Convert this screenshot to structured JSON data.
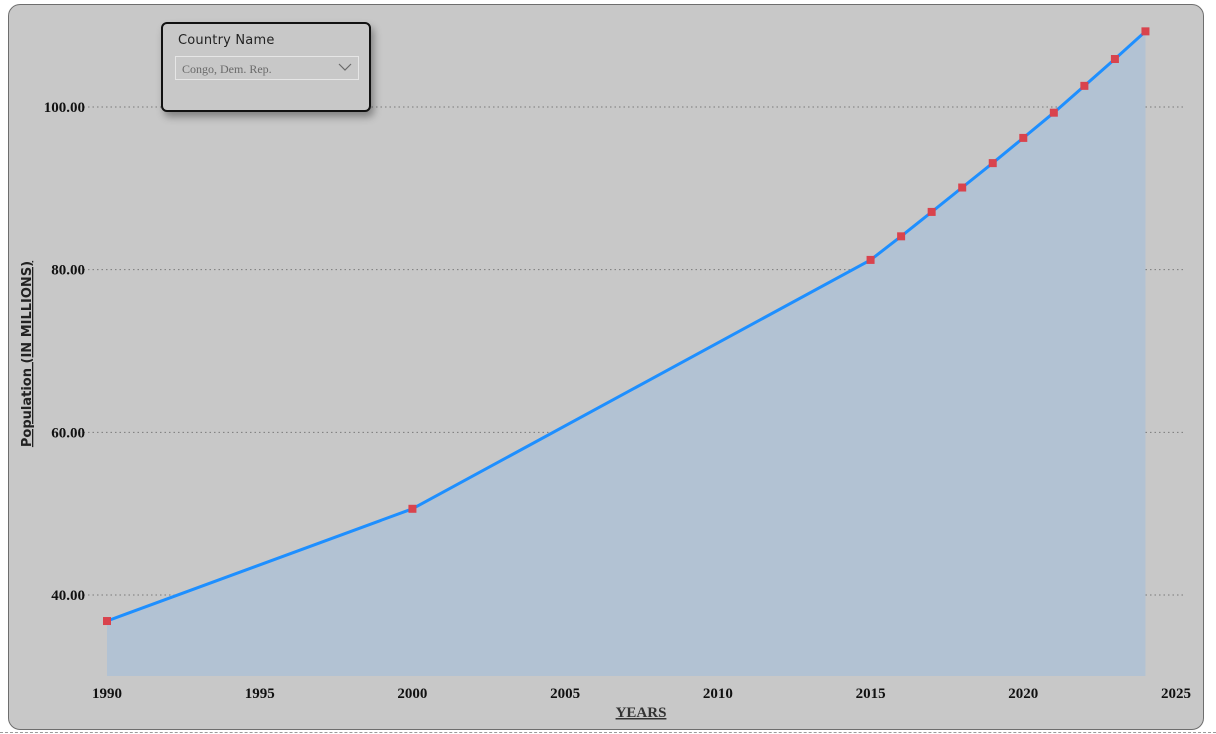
{
  "slicer": {
    "title": "Country Name",
    "selected": "Congo, Dem. Rep."
  },
  "chart_data": {
    "type": "area",
    "xlabel": "YEARS",
    "ylabel": "Population (IN MILLIONS)",
    "xlim": [
      1990,
      2025
    ],
    "ylim": [
      30,
      107
    ],
    "x_ticks": [
      1990,
      1995,
      2000,
      2005,
      2010,
      2015,
      2020,
      2025
    ],
    "x_tick_labels": [
      "1990",
      "1995",
      "2000",
      "2005",
      "2010",
      "2015",
      "2020",
      "2025"
    ],
    "y_ticks": [
      40,
      60,
      80,
      100
    ],
    "y_tick_labels": [
      "40.00",
      "60.00",
      "80.00",
      "100.00"
    ],
    "grid": "horizontal dotted",
    "x": [
      1990,
      2000,
      2015,
      2016,
      2017,
      2018,
      2019,
      2020,
      2021,
      2022,
      2023,
      2024
    ],
    "y": [
      36.8,
      50.6,
      81.2,
      84.1,
      87.1,
      90.1,
      93.1,
      96.2,
      99.3,
      102.6,
      105.9,
      109.3
    ],
    "colors": {
      "line": "#1e8fff",
      "fill": "#b2c2d3",
      "marker": "#d9434d"
    }
  }
}
